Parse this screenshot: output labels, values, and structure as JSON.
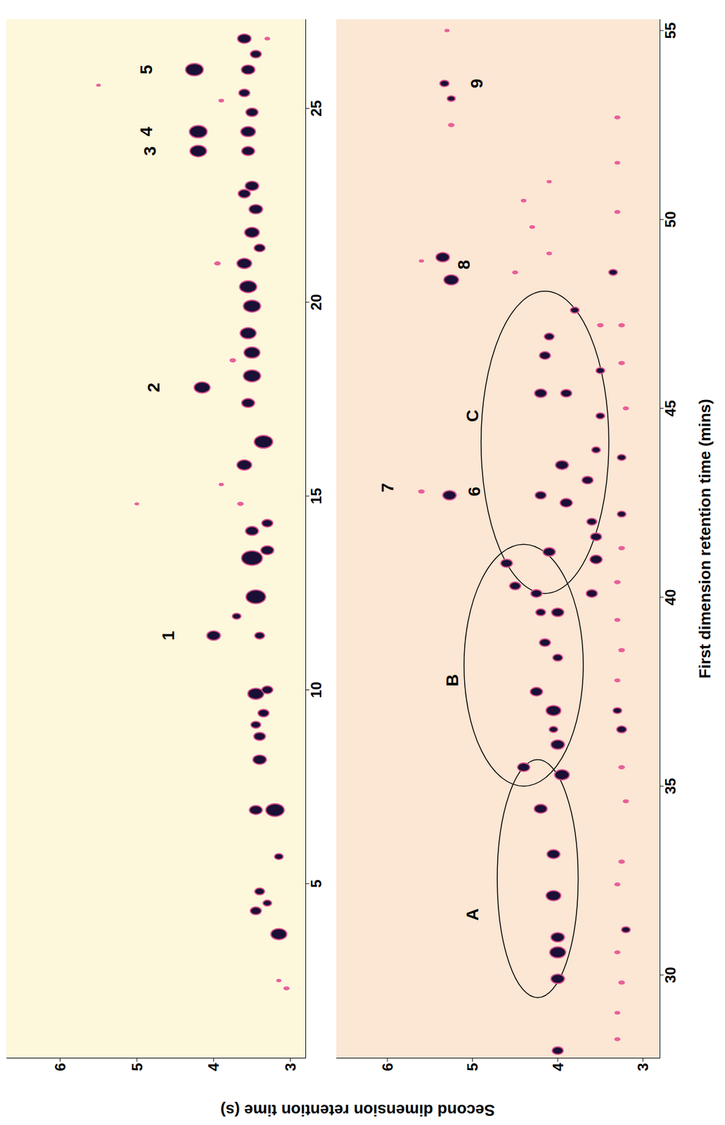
{
  "chart_data": [
    {
      "type": "scatter",
      "ylabel": "Second dimension retention time (s)",
      "xlim": [
        0.5,
        27.3
      ],
      "ylim": [
        2.8,
        6.7
      ],
      "xticks": [
        5,
        10,
        15,
        20,
        25
      ],
      "yticks": [
        3,
        4,
        5,
        6
      ],
      "grid": false,
      "x": [
        2.3,
        2.5,
        3.7,
        4.3,
        4.5,
        4.8,
        5.7,
        6.9,
        6.9,
        8.2,
        8.8,
        9.1,
        9.4,
        9.9,
        10,
        11.4,
        11.4,
        11.9,
        12.4,
        13.4,
        13.6,
        14.1,
        14.3,
        14.8,
        15.8,
        16.4,
        17.4,
        17.8,
        18.1,
        18.5,
        18.7,
        19.2,
        19.9,
        20.4,
        21.0,
        21.0,
        21.4,
        21.8,
        22.4,
        22.8,
        23.0,
        23.9,
        23.9,
        24.4,
        24.4,
        24.9,
        25.4,
        26.0,
        26.0,
        26.4,
        26.8,
        25.2,
        26.8,
        14.8,
        25.6,
        15.3
      ],
      "y": [
        3.05,
        3.15,
        3.15,
        3.45,
        3.3,
        3.4,
        3.15,
        3.2,
        3.45,
        3.4,
        3.4,
        3.45,
        3.35,
        3.45,
        3.3,
        3.4,
        4.0,
        3.7,
        3.45,
        3.5,
        3.3,
        3.5,
        3.3,
        3.65,
        3.6,
        3.35,
        3.55,
        4.15,
        3.5,
        3.75,
        3.5,
        3.55,
        3.5,
        3.55,
        3.6,
        3.95,
        3.4,
        3.5,
        3.45,
        3.6,
        3.5,
        4.2,
        3.55,
        4.2,
        3.55,
        3.5,
        3.6,
        4.25,
        3.55,
        3.45,
        3.6,
        3.9,
        3.3,
        5.0,
        5.5,
        3.9
      ],
      "sizes": [
        0.5,
        0.3,
        2,
        1.2,
        0.8,
        1,
        0.8,
        2.4,
        1.5,
        1.6,
        1.3,
        1,
        1.2,
        2,
        1.2,
        1,
        1.6,
        0.8,
        2.6,
        2.8,
        1.5,
        1.5,
        1.2,
        0.6,
        1.8,
        2.4,
        1.5,
        2,
        2.2,
        0.6,
        2,
        2,
        2.2,
        2.2,
        1.8,
        0.6,
        1.2,
        1.8,
        1.6,
        1.4,
        1.6,
        2.1,
        1.5,
        2.3,
        1.8,
        1.4,
        1.2,
        2.3,
        1.6,
        1.2,
        1.6,
        0.4,
        0.4,
        0.2,
        0.2,
        0.3
      ],
      "annotations": [
        {
          "text": "1",
          "x": 11.4,
          "y": 4.59
        },
        {
          "text": "2",
          "x": 17.8,
          "y": 4.78
        },
        {
          "text": "3",
          "x": 23.9,
          "y": 4.83
        },
        {
          "text": "4",
          "x": 24.4,
          "y": 4.88
        },
        {
          "text": "5",
          "x": 26.0,
          "y": 4.88
        }
      ],
      "regions": []
    },
    {
      "type": "scatter",
      "xlabel": "First dimension retention time (mins)",
      "xlim": [
        27.8,
        55.3
      ],
      "ylim": [
        2.8,
        6.6
      ],
      "xticks": [
        30,
        35,
        40,
        45,
        50,
        55
      ],
      "yticks": [
        3,
        4,
        5,
        6
      ],
      "grid": false,
      "x": [
        28.0,
        29.9,
        30.6,
        31.0,
        32.1,
        33.2,
        34.4,
        35.5,
        35.3,
        36.1,
        36.5,
        37.0,
        37.5,
        38.4,
        38.8,
        39.6,
        39.6,
        40.1,
        40.3,
        40.9,
        40.1,
        41.0,
        41.2,
        41.6,
        42.0,
        42.5,
        42.7,
        43.1,
        43.5,
        43.9,
        44.8,
        45.4,
        45.4,
        46.0,
        46.4,
        46.9,
        47.2,
        47.6,
        42.7,
        42.8,
        48.4,
        49.0,
        48.9,
        53.6,
        53.2,
        52.5,
        55.0,
        48.6,
        49.1,
        49.8,
        50.5,
        51.0,
        28.3,
        29.0,
        29.8,
        30.6,
        31.2,
        32.4,
        33.0,
        34.6,
        35.5,
        36.5,
        37.0,
        37.8,
        38.6,
        39.4,
        40.4,
        41.3,
        42.2,
        43.7,
        45.0,
        46.2,
        47.2,
        48.6,
        50.2,
        51.5,
        52.7
      ],
      "y": [
        4.0,
        4.0,
        4.0,
        4.0,
        4.05,
        4.05,
        4.2,
        4.4,
        3.95,
        4.0,
        4.05,
        4.05,
        4.25,
        4.0,
        4.15,
        4.0,
        4.2,
        4.25,
        4.5,
        4.6,
        3.6,
        3.55,
        4.1,
        3.55,
        3.6,
        3.9,
        4.2,
        3.65,
        3.95,
        3.55,
        3.5,
        4.2,
        3.9,
        3.5,
        4.15,
        4.1,
        3.5,
        3.8,
        5.27,
        5.6,
        5.25,
        5.35,
        5.6,
        5.33,
        5.25,
        5.25,
        5.3,
        4.5,
        4.1,
        4.3,
        4.4,
        4.1,
        3.3,
        3.3,
        3.25,
        3.3,
        3.2,
        3.3,
        3.25,
        3.2,
        3.25,
        3.25,
        3.3,
        3.3,
        3.25,
        3.3,
        3.3,
        3.25,
        3.25,
        3.25,
        3.2,
        3.25,
        3.25,
        3.35,
        3.3,
        3.3,
        3.3
      ],
      "sizes": [
        1.2,
        1.6,
        2,
        1.6,
        1.8,
        1.5,
        1.5,
        1.4,
        1.8,
        1.6,
        0.8,
        1.8,
        1.4,
        1,
        1.2,
        1.4,
        1,
        1.2,
        1.2,
        1.3,
        1.2,
        1.4,
        1.4,
        1.2,
        1,
        1.4,
        1.2,
        1.2,
        1.5,
        0.8,
        0.8,
        1.4,
        1.2,
        0.8,
        1.2,
        1,
        0.6,
        0.8,
        1.6,
        0.6,
        1.8,
        1.6,
        0.3,
        0.9,
        0.7,
        0.6,
        0.3,
        0.5,
        0.4,
        0.4,
        0.4,
        0.3,
        0.5,
        0.4,
        0.6,
        0.5,
        0.8,
        0.5,
        0.6,
        0.5,
        0.6,
        1,
        0.8,
        0.5,
        0.6,
        0.5,
        0.6,
        0.6,
        0.8,
        0.8,
        0.5,
        0.6,
        0.6,
        0.8,
        0.5,
        0.4,
        0.5
      ],
      "annotations": [
        {
          "text": "A",
          "x": 31.6,
          "y": 5.0
        },
        {
          "text": "B",
          "x": 37.8,
          "y": 5.24
        },
        {
          "text": "C",
          "x": 44.8,
          "y": 5.0
        },
        {
          "text": "6",
          "x": 42.8,
          "y": 4.98
        },
        {
          "text": "7",
          "x": 42.9,
          "y": 6.0
        },
        {
          "text": "8",
          "x": 48.8,
          "y": 5.1
        },
        {
          "text": "9",
          "x": 53.6,
          "y": 4.95
        }
      ],
      "regions": [
        {
          "x": [
            29.4,
            35.7
          ],
          "y": [
            3.76,
            4.71
          ]
        },
        {
          "x": [
            35.0,
            41.4
          ],
          "y": [
            3.7,
            5.1
          ]
        },
        {
          "x": [
            40.1,
            48.1
          ],
          "y": [
            3.4,
            4.9
          ]
        }
      ]
    }
  ]
}
